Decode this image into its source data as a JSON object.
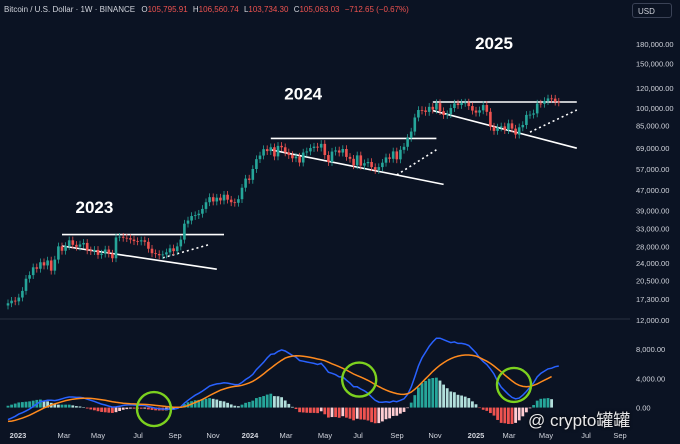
{
  "header": {
    "symbol": "Bitcoin / U.S. Dollar · 1W · BINANCE",
    "o_label": "O",
    "o_value": "105,795.91",
    "h_label": "H",
    "h_value": "106,560.74",
    "l_label": "L",
    "l_value": "103,734.30",
    "c_label": "C",
    "c_value": "105,063.03",
    "change": "−712.65 (−0.67%)",
    "currency_button": "USD"
  },
  "watermark": "@ crypto罐罐",
  "colors": {
    "background": "#0b1323",
    "up": "#26a69a",
    "down": "#ef5350",
    "macd_line": "#2962ff",
    "signal_line": "#ff8a1e",
    "highlight_circle": "#7cd11f",
    "pattern_line": "#ffffff",
    "text": "#d1d4dc"
  },
  "chart_data": [
    {
      "type": "candlestick",
      "title": "",
      "y_scale": "log",
      "ylim": [
        14500,
        220000
      ],
      "x_ticks": [
        "2023",
        "Mar",
        "May",
        "Jul",
        "Sep",
        "Nov",
        "2024",
        "Mar",
        "May",
        "Jul",
        "Sep",
        "Nov",
        "2025",
        "Mar",
        "May",
        "Jul",
        "Sep"
      ],
      "y_ticks": [
        "180,000.00",
        "150,000.00",
        "120,000.00",
        "100,000.00",
        "85,000.00",
        "69,000.00",
        "57,000.00",
        "47,000.00",
        "39,000.00",
        "33,000.00",
        "28,000.00",
        "24,000.00",
        "20,500.00",
        "17,300.00"
      ],
      "year_labels": [
        "2023",
        "2024",
        "2025"
      ],
      "series": [
        {
          "close": [
            16600,
            17000,
            16900,
            17500,
            18600,
            20800,
            21500,
            23100,
            22800,
            24200,
            23500,
            24600,
            22400,
            24800,
            28000,
            26900,
            28100,
            29600,
            28400,
            27900,
            28500,
            28900,
            27000,
            26800,
            27100,
            25900,
            26200,
            27200,
            26200,
            25100,
            30400,
            30600,
            30300,
            30200,
            29800,
            29400,
            29300,
            29600,
            29200,
            27400,
            26300,
            26100,
            25800,
            26000,
            26500,
            27500,
            26800,
            28000,
            29800,
            34500,
            35500,
            37000,
            37300,
            37800,
            39500,
            42000,
            44000,
            42300,
            43800,
            42700,
            45000,
            43000,
            42000,
            41800,
            43200,
            48000,
            52200,
            51600,
            57000,
            62400,
            64500,
            68400,
            67200,
            69600,
            64000,
            70500,
            69600,
            66400,
            64800,
            62900,
            63900,
            60500,
            66300,
            67000,
            69100,
            70000,
            69400,
            71800,
            64800,
            60800,
            66900,
            67600,
            66300,
            68500,
            63700,
            62600,
            59000,
            64600,
            58800,
            60100,
            60800,
            58000,
            56500,
            58000,
            60400,
            63400,
            62600,
            67000,
            62300,
            68000,
            69900,
            75900,
            80400,
            91500,
            98000,
            97600,
            96300,
            100900,
            98400,
            104400,
            97000,
            93600,
            94400,
            99800,
            104100,
            102600,
            104600,
            105000,
            101600,
            97500,
            95700,
            97700,
            102600,
            96400,
            84100,
            80900,
            83500,
            84300,
            81500,
            86700,
            82600,
            78200,
            83600,
            85400,
            93700,
            93900,
            95000,
            104000,
            103800,
            106500,
            109000,
            108800,
            105800,
            105063
          ],
          "high_pad_factor": 1.035,
          "low_pad_factor": 0.965
        }
      ],
      "annotations": {
        "year_labels": [
          "2023",
          "2024",
          "2025"
        ],
        "pattern": "descending trendline with horizontal resistance and dotted breakout each year"
      }
    },
    {
      "type": "macd",
      "ylim": [
        -2800,
        12000
      ],
      "y_ticks": [
        "12,000.00",
        "8,000.00",
        "4,000.00",
        "0.00"
      ],
      "macd": [
        -1650,
        -1450,
        -1200,
        -900,
        -700,
        -450,
        -200,
        150,
        500,
        800,
        900,
        1000,
        1000,
        950,
        1050,
        1200,
        1350,
        1450,
        1450,
        1400,
        1400,
        1330,
        1150,
        1000,
        850,
        650,
        480,
        350,
        200,
        60,
        90,
        180,
        300,
        350,
        380,
        350,
        320,
        300,
        300,
        150,
        30,
        -80,
        -150,
        -200,
        -220,
        -200,
        -230,
        -120,
        100,
        600,
        1000,
        1350,
        1700,
        1950,
        2250,
        2600,
        2950,
        3100,
        3250,
        3300,
        3400,
        3350,
        3250,
        3150,
        3150,
        3450,
        3850,
        4150,
        4550,
        5200,
        5700,
        6200,
        6800,
        7300,
        7350,
        7700,
        7900,
        7750,
        7450,
        7150,
        6900,
        6450,
        6350,
        6250,
        6150,
        6050,
        5900,
        6050,
        5500,
        4850,
        4700,
        4500,
        4200,
        4200,
        3750,
        3350,
        2850,
        2850,
        2550,
        2300,
        1950,
        1450,
        1000,
        750,
        720,
        800,
        720,
        900,
        800,
        1000,
        1200,
        1800,
        2800,
        4200,
        5700,
        6800,
        7600,
        8400,
        9000,
        9500,
        9500,
        9300,
        9100,
        8900,
        9000,
        8800,
        8800,
        8700,
        8500,
        8000,
        7500,
        6800,
        6300,
        5900,
        5300,
        4600,
        3600,
        2800,
        2300,
        1800,
        1400,
        1200,
        1300,
        1700,
        2200,
        2800,
        3400,
        4200,
        4700,
        5000,
        5300,
        5400,
        5600,
        5700
      ],
      "signal": [
        -1900,
        -1850,
        -1750,
        -1600,
        -1450,
        -1250,
        -1050,
        -800,
        -550,
        -300,
        -50,
        150,
        350,
        500,
        650,
        800,
        950,
        1050,
        1150,
        1200,
        1250,
        1280,
        1280,
        1260,
        1220,
        1150,
        1080,
        1000,
        900,
        800,
        720,
        650,
        600,
        560,
        520,
        500,
        480,
        460,
        440,
        400,
        350,
        300,
        250,
        200,
        150,
        100,
        50,
        30,
        40,
        120,
        280,
        480,
        700,
        900,
        1120,
        1380,
        1650,
        1900,
        2150,
        2380,
        2550,
        2700,
        2820,
        2900,
        2960,
        3050,
        3200,
        3380,
        3600,
        3900,
        4250,
        4620,
        5020,
        5400,
        5780,
        6150,
        6480,
        6780,
        6950,
        7050,
        7100,
        7080,
        7020,
        6960,
        6880,
        6780,
        6660,
        6560,
        6420,
        6220,
        6000,
        5800,
        5600,
        5380,
        5130,
        4880,
        4600,
        4380,
        4180,
        3960,
        3720,
        3450,
        3150,
        2880,
        2620,
        2400,
        2200,
        2050,
        1920,
        1830,
        1800,
        1880,
        2120,
        2500,
        2950,
        3450,
        3950,
        4450,
        4950,
        5400,
        5800,
        6150,
        6450,
        6700,
        6900,
        7050,
        7150,
        7200,
        7200,
        7150,
        7050,
        6850,
        6600,
        6350,
        6050,
        5700,
        5300,
        4900,
        4450,
        4050,
        3650,
        3300,
        3050,
        2900,
        2850,
        2900,
        3050,
        3250,
        3500,
        3750,
        4000,
        4250
      ],
      "circles_at_index": [
        40,
        97,
        140
      ]
    }
  ]
}
